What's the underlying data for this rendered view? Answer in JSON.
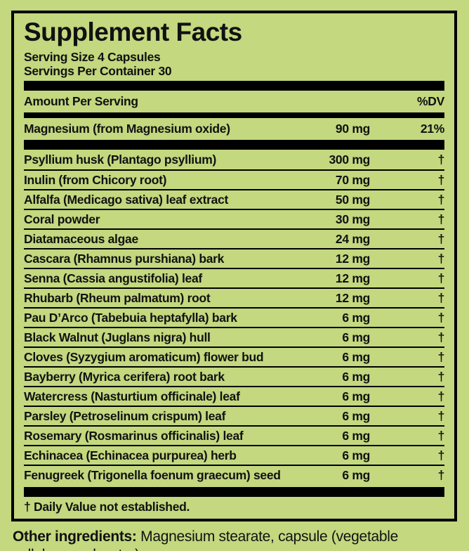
{
  "colors": {
    "background": "#c3d87f",
    "ink": "#111111",
    "rule": "#000000"
  },
  "label": {
    "title": "Supplement Facts",
    "serving_size": "Serving Size 4 Capsules",
    "servings_per_container": "Servings Per Container 30",
    "header": {
      "amount": "Amount Per Serving",
      "dv": "%DV"
    },
    "primary_row": {
      "name": "Magnesium (from Magnesium oxide)",
      "amount": "90 mg",
      "dv": "21%"
    },
    "rows": [
      {
        "name": "Psyllium husk (Plantago psyllium)",
        "amount": "300 mg",
        "dv": "†"
      },
      {
        "name": "Inulin (from Chicory root)",
        "amount": "70 mg",
        "dv": "†"
      },
      {
        "name": "Alfalfa (Medicago sativa) leaf extract",
        "amount": "50 mg",
        "dv": "†"
      },
      {
        "name": "Coral powder",
        "amount": "30 mg",
        "dv": "†"
      },
      {
        "name": "Diatamaceous algae",
        "amount": "24 mg",
        "dv": "†"
      },
      {
        "name": "Cascara (Rhamnus purshiana) bark",
        "amount": "12 mg",
        "dv": "†"
      },
      {
        "name": "Senna (Cassia angustifolia) leaf",
        "amount": "12 mg",
        "dv": "†"
      },
      {
        "name": "Rhubarb (Rheum palmatum) root",
        "amount": "12 mg",
        "dv": "†"
      },
      {
        "name": "Pau D’Arco (Tabebuia heptafylla) bark",
        "amount": "6 mg",
        "dv": "†"
      },
      {
        "name": "Black Walnut (Juglans nigra) hull",
        "amount": "6 mg",
        "dv": "†"
      },
      {
        "name": "Cloves (Syzygium aromaticum) flower bud",
        "amount": "6 mg",
        "dv": "†"
      },
      {
        "name": "Bayberry (Myrica cerifera) root bark",
        "amount": "6 mg",
        "dv": "†"
      },
      {
        "name": "Watercress (Nasturtium officinale) leaf",
        "amount": "6 mg",
        "dv": "†"
      },
      {
        "name": "Parsley (Petroselinum crispum) leaf",
        "amount": "6 mg",
        "dv": "†"
      },
      {
        "name": "Rosemary (Rosmarinus officinalis) leaf",
        "amount": "6 mg",
        "dv": "†"
      },
      {
        "name": "Echinacea (Echinacea purpurea) herb",
        "amount": "6 mg",
        "dv": "†"
      },
      {
        "name": "Fenugreek (Trigonella foenum graecum) seed",
        "amount": "6 mg",
        "dv": "†"
      }
    ],
    "footnote": "† Daily Value not established.",
    "other_ingredients": {
      "lead": "Other ingredients:",
      "text": " Magnesium stearate, capsule (vegetable cellulose and water)."
    }
  }
}
